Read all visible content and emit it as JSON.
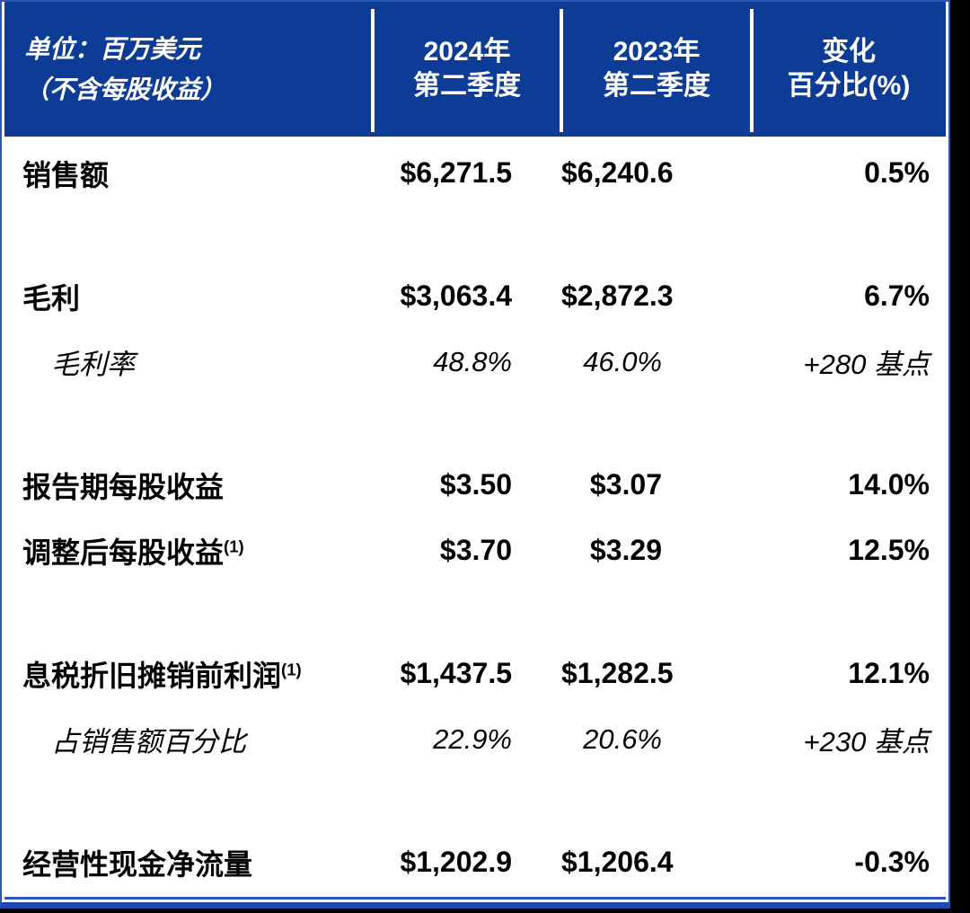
{
  "page": {
    "background_color": "#000000"
  },
  "table": {
    "colors": {
      "header_blue": "#0D3C96",
      "border_blue": "#2B57B8",
      "divider_white": "#FFFFFF",
      "text_black": "#000000"
    },
    "unit_label": {
      "line1": "单位：百万美元",
      "line2": "（不含每股收益）"
    },
    "columns": [
      {
        "line1": "2024年",
        "line2": "第二季度"
      },
      {
        "line1": "2023年",
        "line2": "第二季度"
      },
      {
        "line1": "变化",
        "line2": "百分比(%)"
      }
    ],
    "sections": [
      {
        "rows": [
          {
            "label": "销售额",
            "sup": "",
            "italic": false,
            "values": [
              "$6,271.5",
              "$6,240.6",
              "0.5%"
            ]
          }
        ]
      },
      {
        "rows": [
          {
            "label": "毛利",
            "sup": "",
            "italic": false,
            "values": [
              "$3,063.4",
              "$2,872.3",
              "6.7%"
            ]
          },
          {
            "label": "毛利率",
            "sup": "",
            "italic": true,
            "values": [
              "48.8%",
              "46.0%",
              "+280 基点"
            ]
          }
        ]
      },
      {
        "rows": [
          {
            "label": "报告期每股收益",
            "sup": "",
            "italic": false,
            "values": [
              "$3.50",
              "$3.07",
              "14.0%"
            ]
          },
          {
            "label": "调整后每股收益",
            "sup": "(1)",
            "italic": false,
            "values": [
              "$3.70",
              "$3.29",
              "12.5%"
            ]
          }
        ]
      },
      {
        "rows": [
          {
            "label": "息税折旧摊销前利润",
            "sup": "(1)",
            "italic": false,
            "values": [
              "$1,437.5",
              "$1,282.5",
              "12.1%"
            ]
          },
          {
            "label": "占销售额百分比",
            "sup": "",
            "italic": true,
            "values": [
              "22.9%",
              "20.6%",
              "+230 基点"
            ]
          }
        ]
      },
      {
        "rows": [
          {
            "label": "经营性现金净流量",
            "sup": "",
            "italic": false,
            "values": [
              "$1,202.9",
              "$1,206.4",
              "-0.3%"
            ]
          }
        ]
      }
    ]
  },
  "chart_data": {
    "type": "table",
    "title": "单位：百万美元（不含每股收益）",
    "columns": [
      "",
      "2024年第二季度",
      "2023年第二季度",
      "变化百分比(%)"
    ],
    "rows": [
      [
        "销售额",
        "$6,271.5",
        "$6,240.6",
        "0.5%"
      ],
      [
        "毛利",
        "$3,063.4",
        "$2,872.3",
        "6.7%"
      ],
      [
        "毛利率",
        "48.8%",
        "46.0%",
        "+280 基点"
      ],
      [
        "报告期每股收益",
        "$3.50",
        "$3.07",
        "14.0%"
      ],
      [
        "调整后每股收益(1)",
        "$3.70",
        "$3.29",
        "12.5%"
      ],
      [
        "息税折旧摊销前利润(1)",
        "$1,437.5",
        "$1,282.5",
        "12.1%"
      ],
      [
        "占销售额百分比",
        "22.9%",
        "20.6%",
        "+230 基点"
      ],
      [
        "经营性现金净流量",
        "$1,202.9",
        "$1,206.4",
        "-0.3%"
      ]
    ]
  }
}
